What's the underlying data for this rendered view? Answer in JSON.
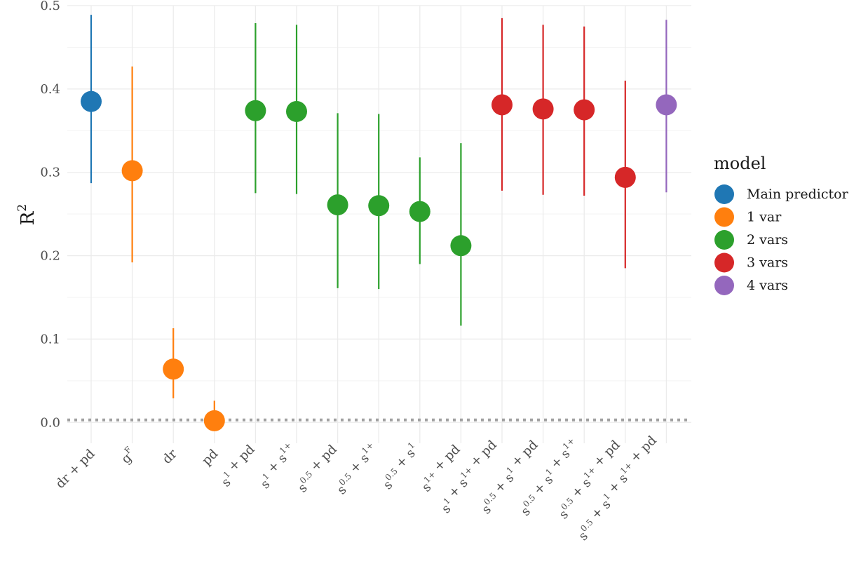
{
  "chart_data": {
    "type": "scatter",
    "ylabel": "R",
    "ylabel_sup": "2",
    "ylim": [
      -0.025,
      0.5
    ],
    "yticks": [
      0.0,
      0.1,
      0.2,
      0.3,
      0.4,
      0.5
    ],
    "ytick_labels": [
      "0.0",
      "0.1",
      "0.2",
      "0.3",
      "0.4",
      "0.5"
    ],
    "reference_line": {
      "y": 0.003,
      "style": "dotted",
      "color": "#a0a0a0"
    },
    "grid": true,
    "legend": {
      "title": "model",
      "position": "right",
      "entries": [
        {
          "label": "Main predictor",
          "color": "#1f77b4"
        },
        {
          "label": "1 var",
          "color": "#ff7f0e"
        },
        {
          "label": "2 vars",
          "color": "#2ca02c"
        },
        {
          "label": "3 vars",
          "color": "#d62728"
        },
        {
          "label": "4 vars",
          "color": "#9467bd"
        }
      ]
    },
    "points": [
      {
        "label": [
          [
            "dr + pd",
            ""
          ]
        ],
        "group": "Main predictor",
        "y": 0.385,
        "lo": 0.287,
        "hi": 0.489
      },
      {
        "label": [
          [
            "g",
            ""
          ],
          [
            "",
            "F"
          ]
        ],
        "group": "1 var",
        "y": 0.302,
        "lo": 0.192,
        "hi": 0.427
      },
      {
        "label": [
          [
            "dr",
            ""
          ]
        ],
        "group": "1 var",
        "y": 0.064,
        "lo": 0.029,
        "hi": 0.113
      },
      {
        "label": [
          [
            "pd",
            ""
          ]
        ],
        "group": "1 var",
        "y": 0.002,
        "lo": 0.0,
        "hi": 0.026
      },
      {
        "label": [
          [
            "s",
            ""
          ],
          [
            "",
            "1"
          ],
          [
            " + pd",
            ""
          ]
        ],
        "group": "2 vars",
        "y": 0.374,
        "lo": 0.275,
        "hi": 0.479
      },
      {
        "label": [
          [
            "s",
            ""
          ],
          [
            "",
            "1"
          ],
          [
            " + s",
            ""
          ],
          [
            "",
            "1+"
          ]
        ],
        "group": "2 vars",
        "y": 0.373,
        "lo": 0.274,
        "hi": 0.477
      },
      {
        "label": [
          [
            "s",
            ""
          ],
          [
            "",
            "0.5"
          ],
          [
            " + pd",
            ""
          ]
        ],
        "group": "2 vars",
        "y": 0.261,
        "lo": 0.161,
        "hi": 0.371
      },
      {
        "label": [
          [
            "s",
            ""
          ],
          [
            "",
            "0.5"
          ],
          [
            " + s",
            ""
          ],
          [
            "",
            "1+"
          ]
        ],
        "group": "2 vars",
        "y": 0.26,
        "lo": 0.16,
        "hi": 0.37
      },
      {
        "label": [
          [
            "s",
            ""
          ],
          [
            "",
            "0.5"
          ],
          [
            " + s",
            ""
          ],
          [
            "",
            "1"
          ]
        ],
        "group": "2 vars",
        "y": 0.253,
        "lo": 0.19,
        "hi": 0.318
      },
      {
        "label": [
          [
            "s",
            ""
          ],
          [
            "",
            "1+"
          ],
          [
            " + pd",
            ""
          ]
        ],
        "group": "2 vars",
        "y": 0.212,
        "lo": 0.116,
        "hi": 0.335
      },
      {
        "label": [
          [
            "s",
            ""
          ],
          [
            "",
            "1"
          ],
          [
            " + s",
            ""
          ],
          [
            "",
            "1+"
          ],
          [
            " + pd",
            ""
          ]
        ],
        "group": "3 vars",
        "y": 0.381,
        "lo": 0.278,
        "hi": 0.485
      },
      {
        "label": [
          [
            "s",
            ""
          ],
          [
            "",
            "0.5"
          ],
          [
            " + s",
            ""
          ],
          [
            "",
            "1"
          ],
          [
            " + pd",
            ""
          ]
        ],
        "group": "3 vars",
        "y": 0.376,
        "lo": 0.273,
        "hi": 0.477
      },
      {
        "label": [
          [
            "s",
            ""
          ],
          [
            "",
            "0.5"
          ],
          [
            " + s",
            ""
          ],
          [
            "",
            "1"
          ],
          [
            " + s",
            ""
          ],
          [
            "",
            "1+"
          ]
        ],
        "group": "3 vars",
        "y": 0.375,
        "lo": 0.272,
        "hi": 0.475
      },
      {
        "label": [
          [
            "s",
            ""
          ],
          [
            "",
            "0.5"
          ],
          [
            " + s",
            ""
          ],
          [
            "",
            "1+"
          ],
          [
            " + pd",
            ""
          ]
        ],
        "group": "3 vars",
        "y": 0.294,
        "lo": 0.185,
        "hi": 0.41
      },
      {
        "label": [
          [
            "s",
            ""
          ],
          [
            "",
            "0.5"
          ],
          [
            " + s",
            ""
          ],
          [
            "",
            "1"
          ],
          [
            " + s",
            ""
          ],
          [
            "",
            "1+"
          ],
          [
            " + pd",
            ""
          ]
        ],
        "group": "4 vars",
        "y": 0.381,
        "lo": 0.276,
        "hi": 0.483
      }
    ]
  }
}
